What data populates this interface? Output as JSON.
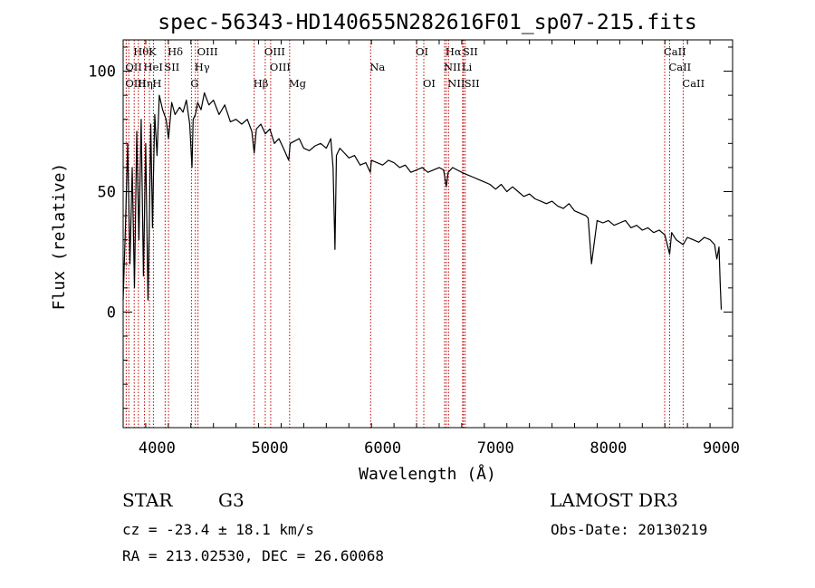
{
  "chart_data": {
    "type": "line",
    "title": "spec-56343-HD140655N282616F01_sp07-215.fits",
    "xlabel": "Wavelength (Å)",
    "ylabel": "Flux (relative)",
    "xlim": [
      3700,
      9100
    ],
    "ylim": [
      -48,
      113
    ],
    "xticks": [
      4000,
      5000,
      6000,
      7000,
      8000,
      9000
    ],
    "yticks": [
      0,
      50,
      100
    ],
    "grid": false,
    "series": [
      {
        "name": "flux",
        "x": [
          3700,
          3720,
          3740,
          3760,
          3780,
          3800,
          3820,
          3840,
          3860,
          3880,
          3900,
          3920,
          3933,
          3945,
          3960,
          3968,
          3980,
          4000,
          4020,
          4050,
          4080,
          4102,
          4130,
          4160,
          4200,
          4230,
          4260,
          4290,
          4310,
          4320,
          4340,
          4360,
          4390,
          4420,
          4460,
          4500,
          4550,
          4600,
          4650,
          4700,
          4750,
          4800,
          4840,
          4861,
          4880,
          4920,
          4960,
          5000,
          5040,
          5080,
          5120,
          5167,
          5180,
          5220,
          5260,
          5300,
          5350,
          5400,
          5450,
          5500,
          5540,
          5560,
          5577,
          5590,
          5620,
          5660,
          5700,
          5750,
          5800,
          5850,
          5890,
          5900,
          5950,
          6000,
          6050,
          6100,
          6150,
          6200,
          6250,
          6300,
          6350,
          6400,
          6450,
          6500,
          6540,
          6563,
          6580,
          6620,
          6660,
          6700,
          6750,
          6800,
          6850,
          6900,
          6950,
          7000,
          7050,
          7100,
          7150,
          7200,
          7250,
          7300,
          7350,
          7400,
          7450,
          7500,
          7550,
          7600,
          7650,
          7700,
          7750,
          7800,
          7820,
          7850,
          7900,
          7950,
          8000,
          8050,
          8100,
          8150,
          8200,
          8250,
          8300,
          8350,
          8400,
          8450,
          8500,
          8542,
          8560,
          8600,
          8662,
          8700,
          8750,
          8800,
          8850,
          8900,
          8940,
          8960,
          8980,
          8990,
          9000
        ],
        "values": [
          5,
          35,
          70,
          20,
          60,
          10,
          75,
          30,
          80,
          15,
          70,
          5,
          40,
          78,
          35,
          55,
          82,
          65,
          90,
          84,
          80,
          72,
          87,
          82,
          85,
          83,
          88,
          78,
          60,
          80,
          82,
          87,
          84,
          91,
          86,
          88,
          82,
          86,
          79,
          80,
          78,
          80,
          75,
          66,
          76,
          78,
          74,
          76,
          70,
          72,
          68,
          63,
          70,
          71,
          72,
          68,
          67,
          69,
          70,
          68,
          72,
          60,
          26,
          65,
          68,
          66,
          64,
          65,
          61,
          62,
          58,
          63,
          62,
          61,
          63,
          62,
          60,
          61,
          58,
          59,
          60,
          58,
          59,
          60,
          59,
          52,
          58,
          60,
          59,
          58,
          57,
          56,
          55,
          54,
          53,
          51,
          53,
          50,
          52,
          50,
          48,
          49,
          47,
          46,
          45,
          46,
          44,
          43,
          45,
          42,
          41,
          40,
          39,
          20,
          38,
          37,
          38,
          36,
          37,
          38,
          35,
          36,
          34,
          35,
          33,
          34,
          32,
          24,
          33,
          30,
          28,
          31,
          30,
          29,
          31,
          30,
          28,
          22,
          27,
          12,
          1
        ]
      }
    ],
    "spectral_lines": [
      {
        "label": "Hθ",
        "x": 3798,
        "row": 0
      },
      {
        "label": "K",
        "x": 3933,
        "row": 0
      },
      {
        "label": "Hδ",
        "x": 4102,
        "row": 0
      },
      {
        "label": "OIII",
        "x": 4363,
        "row": 0
      },
      {
        "label": "OIII",
        "x": 4959,
        "row": 0
      },
      {
        "label": "OI",
        "x": 6300,
        "row": 0
      },
      {
        "label": "Hα",
        "x": 6563,
        "row": 0
      },
      {
        "label": "SII",
        "x": 6716,
        "row": 0
      },
      {
        "label": "CaII",
        "x": 8498,
        "row": 0
      },
      {
        "label": "OII",
        "x": 3727,
        "row": 1
      },
      {
        "label": "HeI",
        "x": 3889,
        "row": 1
      },
      {
        "label": "SII",
        "x": 4072,
        "row": 1
      },
      {
        "label": "Hγ",
        "x": 4340,
        "row": 1
      },
      {
        "label": "OIII",
        "x": 5007,
        "row": 1
      },
      {
        "label": "Na",
        "x": 5893,
        "row": 1
      },
      {
        "label": "NII",
        "x": 6548,
        "row": 1
      },
      {
        "label": "Li",
        "x": 6708,
        "row": 1
      },
      {
        "label": "CaII",
        "x": 8542,
        "row": 1
      },
      {
        "label": "OIII",
        "x": 3727,
        "row": 2
      },
      {
        "label": "Hη",
        "x": 3835,
        "row": 2
      },
      {
        "label": "H",
        "x": 3968,
        "row": 2
      },
      {
        "label": "G",
        "x": 4305,
        "row": 2
      },
      {
        "label": "Hβ",
        "x": 4861,
        "row": 2
      },
      {
        "label": "Mg",
        "x": 5175,
        "row": 2
      },
      {
        "label": "OI",
        "x": 6364,
        "row": 2
      },
      {
        "label": "NII",
        "x": 6583,
        "row": 2
      },
      {
        "label": "SII",
        "x": 6731,
        "row": 2
      },
      {
        "label": "CaII",
        "x": 8662,
        "row": 2
      }
    ],
    "line_marker_positions": [
      3727,
      3750,
      3798,
      3835,
      3889,
      3933,
      3968,
      4072,
      4102,
      4305,
      4340,
      4363,
      4861,
      4959,
      5007,
      5175,
      5893,
      6300,
      6364,
      6548,
      6563,
      6583,
      6708,
      6716,
      6731,
      8498,
      8542,
      8662
    ],
    "line_marker_color": "#c00000"
  },
  "info": {
    "object_class": "STAR",
    "subclass": "G3",
    "survey": "LAMOST DR3",
    "redshift": "cz = -23.4 ± 18.1 km/s",
    "obs_date": "Obs-Date: 20130219",
    "coords": "RA = 213.02530, DEC =  26.60068"
  }
}
